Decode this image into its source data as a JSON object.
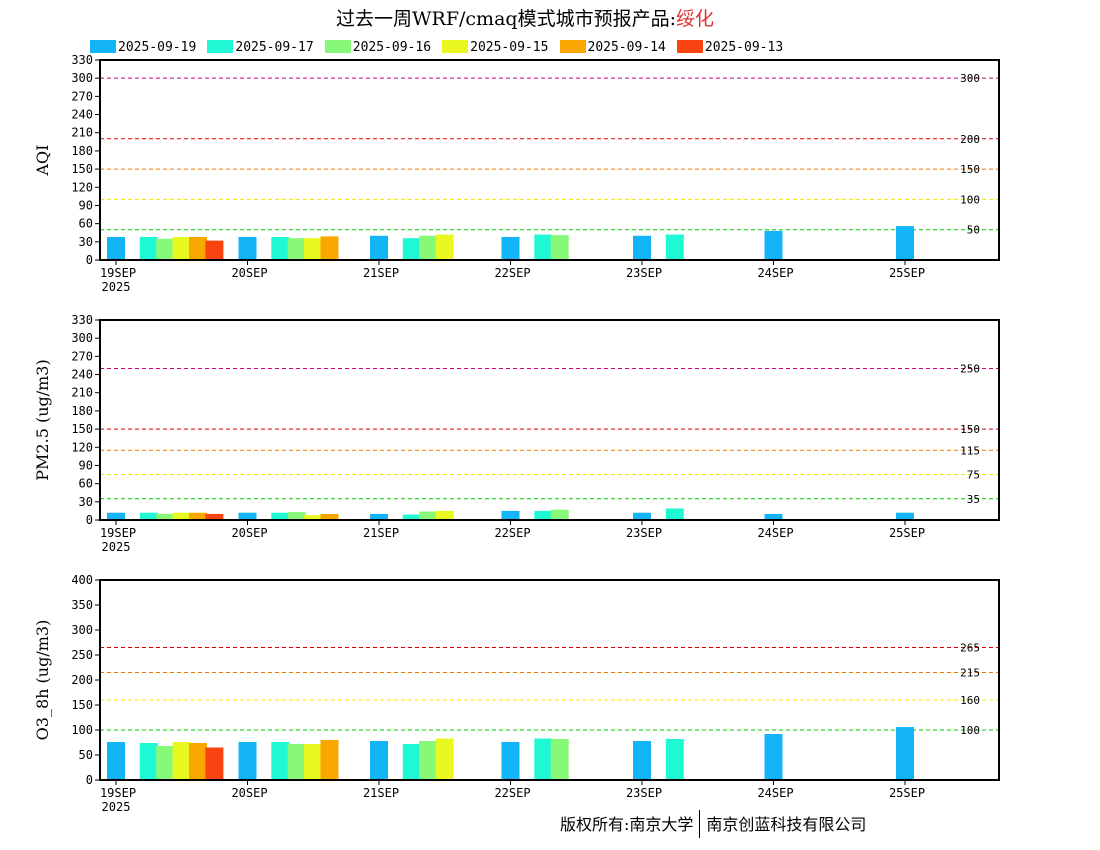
{
  "title_prefix": "过去一周WRF/cmaq模式城市预报产品:",
  "title_city": "绥化",
  "copyright_left": "版权所有:南京大学",
  "copyright_right": "南京创蓝科技有限公司",
  "chart_data": {
    "type": "bar",
    "series_names": [
      "2025-09-19",
      "2025-09-17",
      "2025-09-16",
      "2025-09-15",
      "2025-09-14",
      "2025-09-13"
    ],
    "series_colors": [
      "#14b4f8",
      "#20f8d4",
      "#88f878",
      "#e8f820",
      "#f8a800",
      "#f84410"
    ],
    "x_days": [
      "19SEP",
      "20SEP",
      "21SEP",
      "22SEP",
      "23SEP",
      "24SEP",
      "25SEP"
    ],
    "x_year": "2025",
    "panels": [
      {
        "ylabel": "AQI",
        "ylim": [
          0,
          330
        ],
        "yticks": [
          0,
          30,
          60,
          90,
          120,
          150,
          180,
          210,
          240,
          270,
          300,
          330
        ],
        "thresholds": [
          {
            "value": 300,
            "label": "300",
            "color": "#c8006e"
          },
          {
            "value": 200,
            "label": "200",
            "color": "#e00000"
          },
          {
            "value": 150,
            "label": "150",
            "color": "#f07800"
          },
          {
            "value": 100,
            "label": "100",
            "color": "#f0e800"
          },
          {
            "value": 50,
            "label": "50",
            "color": "#00c800"
          }
        ],
        "bars": [
          {
            "day": 0,
            "slot": 0,
            "series": 0,
            "value": 38
          },
          {
            "day": 0,
            "slot": 2,
            "series": 1,
            "value": 38
          },
          {
            "day": 0,
            "slot": 3,
            "series": 2,
            "value": 35
          },
          {
            "day": 0,
            "slot": 4,
            "series": 3,
            "value": 38
          },
          {
            "day": 0,
            "slot": 5,
            "series": 4,
            "value": 38
          },
          {
            "day": 0,
            "slot": 6,
            "series": 5,
            "value": 32
          },
          {
            "day": 1,
            "slot": 0,
            "series": 0,
            "value": 38
          },
          {
            "day": 1,
            "slot": 2,
            "series": 1,
            "value": 38
          },
          {
            "day": 1,
            "slot": 3,
            "series": 2,
            "value": 36
          },
          {
            "day": 1,
            "slot": 4,
            "series": 3,
            "value": 36
          },
          {
            "day": 1,
            "slot": 5,
            "series": 4,
            "value": 39
          },
          {
            "day": 2,
            "slot": 0,
            "series": 0,
            "value": 40
          },
          {
            "day": 2,
            "slot": 2,
            "series": 1,
            "value": 36
          },
          {
            "day": 2,
            "slot": 3,
            "series": 2,
            "value": 40
          },
          {
            "day": 2,
            "slot": 4,
            "series": 3,
            "value": 42
          },
          {
            "day": 3,
            "slot": 0,
            "series": 0,
            "value": 38
          },
          {
            "day": 3,
            "slot": 2,
            "series": 1,
            "value": 42
          },
          {
            "day": 3,
            "slot": 3,
            "series": 2,
            "value": 41
          },
          {
            "day": 4,
            "slot": 0,
            "series": 0,
            "value": 40
          },
          {
            "day": 4,
            "slot": 2,
            "series": 1,
            "value": 42
          },
          {
            "day": 5,
            "slot": 0,
            "series": 0,
            "value": 48
          },
          {
            "day": 6,
            "slot": 0,
            "series": 0,
            "value": 56
          }
        ]
      },
      {
        "ylabel": "PM2.5 (ug/m3)",
        "ylim": [
          0,
          330
        ],
        "yticks": [
          0,
          30,
          60,
          90,
          120,
          150,
          180,
          210,
          240,
          270,
          300,
          330
        ],
        "thresholds": [
          {
            "value": 250,
            "label": "250",
            "color": "#c8006e"
          },
          {
            "value": 150,
            "label": "150",
            "color": "#e00000"
          },
          {
            "value": 115,
            "label": "115",
            "color": "#f07800"
          },
          {
            "value": 75,
            "label": "75",
            "color": "#f0e800"
          },
          {
            "value": 35,
            "label": "35",
            "color": "#00c800"
          }
        ],
        "bars": [
          {
            "day": 0,
            "slot": 0,
            "series": 0,
            "value": 12
          },
          {
            "day": 0,
            "slot": 2,
            "series": 1,
            "value": 12
          },
          {
            "day": 0,
            "slot": 3,
            "series": 2,
            "value": 10
          },
          {
            "day": 0,
            "slot": 4,
            "series": 3,
            "value": 12
          },
          {
            "day": 0,
            "slot": 5,
            "series": 4,
            "value": 12
          },
          {
            "day": 0,
            "slot": 6,
            "series": 5,
            "value": 10
          },
          {
            "day": 1,
            "slot": 0,
            "series": 0,
            "value": 12
          },
          {
            "day": 1,
            "slot": 2,
            "series": 1,
            "value": 12
          },
          {
            "day": 1,
            "slot": 3,
            "series": 2,
            "value": 13
          },
          {
            "day": 1,
            "slot": 4,
            "series": 3,
            "value": 8
          },
          {
            "day": 1,
            "slot": 5,
            "series": 4,
            "value": 10
          },
          {
            "day": 2,
            "slot": 0,
            "series": 0,
            "value": 10
          },
          {
            "day": 2,
            "slot": 2,
            "series": 1,
            "value": 9
          },
          {
            "day": 2,
            "slot": 3,
            "series": 2,
            "value": 14
          },
          {
            "day": 2,
            "slot": 4,
            "series": 3,
            "value": 15
          },
          {
            "day": 3,
            "slot": 0,
            "series": 0,
            "value": 15
          },
          {
            "day": 3,
            "slot": 2,
            "series": 1,
            "value": 15
          },
          {
            "day": 3,
            "slot": 3,
            "series": 2,
            "value": 17
          },
          {
            "day": 4,
            "slot": 0,
            "series": 0,
            "value": 12
          },
          {
            "day": 4,
            "slot": 2,
            "series": 1,
            "value": 19
          },
          {
            "day": 5,
            "slot": 0,
            "series": 0,
            "value": 10
          },
          {
            "day": 6,
            "slot": 0,
            "series": 0,
            "value": 12
          }
        ]
      },
      {
        "ylabel": "O3_8h (ug/m3)",
        "ylim": [
          0,
          400
        ],
        "yticks": [
          0,
          50,
          100,
          150,
          200,
          250,
          300,
          350,
          400
        ],
        "thresholds": [
          {
            "value": 265,
            "label": "265",
            "color": "#e00000"
          },
          {
            "value": 215,
            "label": "215",
            "color": "#f07800"
          },
          {
            "value": 160,
            "label": "160",
            "color": "#f0e800"
          },
          {
            "value": 100,
            "label": "100",
            "color": "#00c800"
          }
        ],
        "bars": [
          {
            "day": 0,
            "slot": 0,
            "series": 0,
            "value": 76
          },
          {
            "day": 0,
            "slot": 2,
            "series": 1,
            "value": 74
          },
          {
            "day": 0,
            "slot": 3,
            "series": 2,
            "value": 68
          },
          {
            "day": 0,
            "slot": 4,
            "series": 3,
            "value": 76
          },
          {
            "day": 0,
            "slot": 5,
            "series": 4,
            "value": 74
          },
          {
            "day": 0,
            "slot": 6,
            "series": 5,
            "value": 65
          },
          {
            "day": 1,
            "slot": 0,
            "series": 0,
            "value": 76
          },
          {
            "day": 1,
            "slot": 2,
            "series": 1,
            "value": 76
          },
          {
            "day": 1,
            "slot": 3,
            "series": 2,
            "value": 72
          },
          {
            "day": 1,
            "slot": 4,
            "series": 3,
            "value": 72
          },
          {
            "day": 1,
            "slot": 5,
            "series": 4,
            "value": 80
          },
          {
            "day": 2,
            "slot": 0,
            "series": 0,
            "value": 78
          },
          {
            "day": 2,
            "slot": 2,
            "series": 1,
            "value": 72
          },
          {
            "day": 2,
            "slot": 3,
            "series": 2,
            "value": 78
          },
          {
            "day": 2,
            "slot": 4,
            "series": 3,
            "value": 83
          },
          {
            "day": 3,
            "slot": 0,
            "series": 0,
            "value": 76
          },
          {
            "day": 3,
            "slot": 2,
            "series": 1,
            "value": 83
          },
          {
            "day": 3,
            "slot": 3,
            "series": 2,
            "value": 82
          },
          {
            "day": 4,
            "slot": 0,
            "series": 0,
            "value": 78
          },
          {
            "day": 4,
            "slot": 2,
            "series": 1,
            "value": 82
          },
          {
            "day": 5,
            "slot": 0,
            "series": 0,
            "value": 92
          },
          {
            "day": 6,
            "slot": 0,
            "series": 0,
            "value": 106
          }
        ]
      }
    ]
  }
}
